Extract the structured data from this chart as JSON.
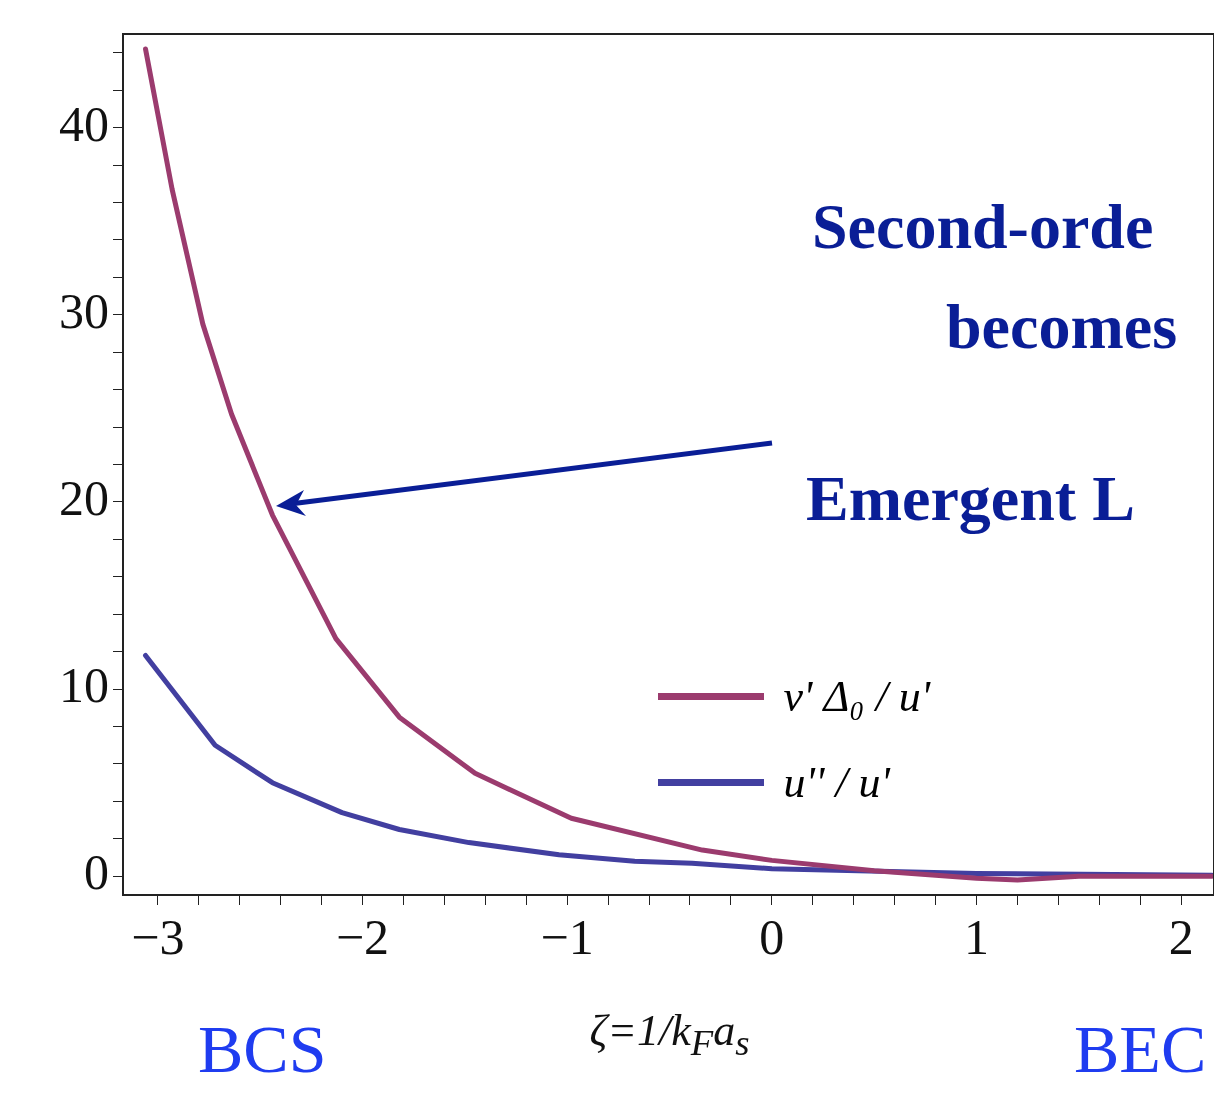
{
  "chart_data": {
    "type": "line",
    "xlabel": "ζ=1/k$_{F}$a$_{s}$",
    "x": [
      -3.06,
      -2.93,
      -2.78,
      -2.64,
      -2.44,
      -2.13,
      -1.82,
      -1.45,
      -0.98,
      -0.34,
      0,
      0.5,
      1.0,
      1.2,
      1.5,
      2.15
    ],
    "series": [
      {
        "name": "v' Δ₀ / u'",
        "color": "#9b3b6e",
        "values": [
          44.2,
          36.7,
          29.5,
          24.7,
          19.3,
          12.7,
          8.5,
          5.5,
          3.1,
          1.4,
          0.85,
          0.3,
          -0.1,
          -0.2,
          0,
          0
        ]
      },
      {
        "name": "u'' / u'",
        "color": "#423fa0",
        "x": [
          -3.06,
          -2.72,
          -2.44,
          -2.1,
          -1.82,
          -1.48,
          -1.04,
          -0.67,
          -0.39,
          0,
          1.0,
          2.15
        ],
        "values": [
          11.8,
          7.0,
          5.0,
          3.4,
          2.5,
          1.8,
          1.15,
          0.8,
          0.7,
          0.4,
          0.15,
          0.05
        ]
      }
    ],
    "xlim": [
      -3.17,
      2.16
    ],
    "ylim": [
      -1,
      45
    ],
    "xticks": [
      -3,
      {
        "value": -2.8,
        "label": null
      },
      {
        "value": -2.6,
        "label": null
      },
      {
        "value": -2.4,
        "label": null
      },
      {
        "value": -2.2,
        "label": null
      },
      -2,
      {
        "value": -1.8,
        "label": null
      },
      {
        "value": -1.6,
        "label": null
      },
      {
        "value": -1.4,
        "label": null
      },
      {
        "value": -1.2,
        "label": null
      },
      -1,
      {
        "value": -0.8,
        "label": null
      },
      {
        "value": -0.6,
        "label": null
      },
      {
        "value": -0.4,
        "label": null
      },
      {
        "value": -0.2,
        "label": null
      },
      0,
      {
        "value": 0.2,
        "label": null
      },
      {
        "value": 0.4,
        "label": null
      },
      {
        "value": 0.6,
        "label": null
      },
      {
        "value": 0.8,
        "label": null
      },
      1,
      {
        "value": 1.2,
        "label": null
      },
      {
        "value": 1.4,
        "label": null
      },
      {
        "value": 1.6,
        "label": null
      },
      {
        "value": 1.8,
        "label": null
      },
      2
    ],
    "yticks": [
      0,
      {
        "value": 2,
        "label": null
      },
      {
        "value": 4,
        "label": null
      },
      {
        "value": 6,
        "label": null
      },
      {
        "value": 8,
        "label": null
      },
      10,
      {
        "value": 12,
        "label": null
      },
      {
        "value": 14,
        "label": null
      },
      {
        "value": 16,
        "label": null
      },
      {
        "value": 18,
        "label": null
      },
      20,
      {
        "value": 22,
        "label": null
      },
      {
        "value": 24,
        "label": null
      },
      {
        "value": 26,
        "label": null
      },
      {
        "value": 28,
        "label": null
      },
      30,
      {
        "value": 32,
        "label": null
      },
      {
        "value": 34,
        "label": null
      },
      {
        "value": 36,
        "label": null
      },
      {
        "value": 38,
        "label": null
      },
      40,
      {
        "value": 42,
        "label": null
      },
      {
        "value": 44,
        "label": null
      }
    ],
    "annotations": [
      "Second-orde",
      "becomes",
      "Emergent L",
      "BCS",
      "BEC"
    ],
    "legend": "right",
    "grid": false,
    "marker": "none",
    "line_style": "solid"
  }
}
